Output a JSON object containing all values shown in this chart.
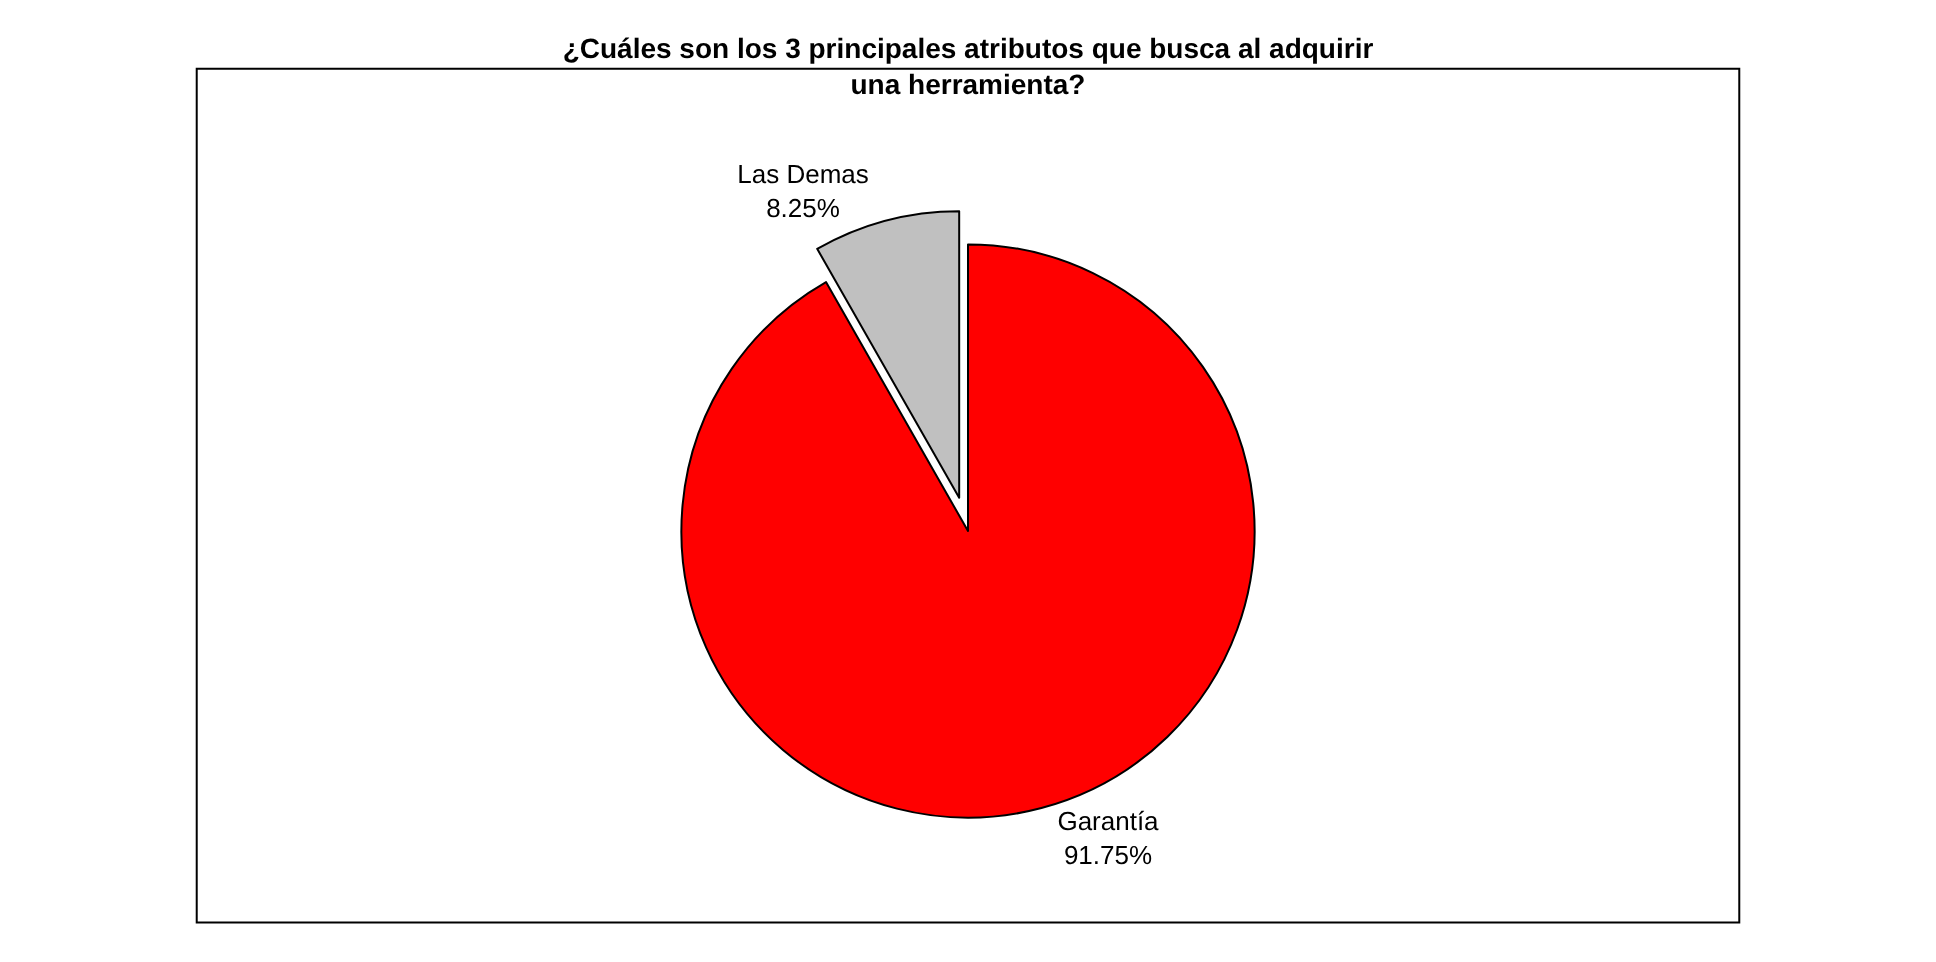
{
  "chart_data": {
    "type": "pie",
    "title": "¿Cuáles son los 3 principales atributos que busca al adquirir una herramienta?",
    "categories": [
      "Las Demas",
      "Garantía"
    ],
    "values": [
      8.25,
      91.75
    ],
    "colors": [
      "#c0c0c0",
      "#ff0000"
    ],
    "value_labels": [
      "8.25%",
      "91.75%"
    ],
    "legend": false
  }
}
